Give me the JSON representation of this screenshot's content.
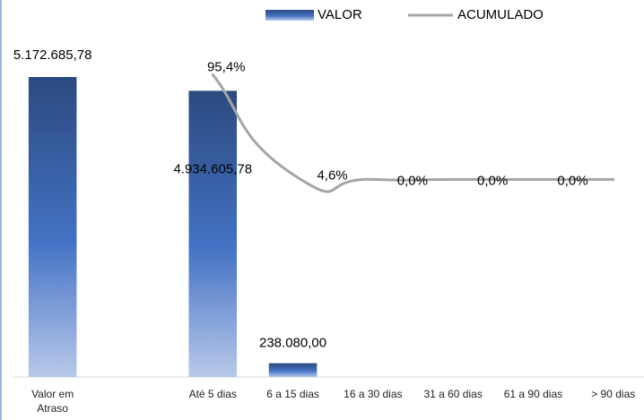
{
  "chart_data": {
    "type": "bar_line",
    "categories": [
      "Valor em Atraso",
      null,
      "Até 5 dias",
      "6 a 15 dias",
      "16 a 30 dias",
      "31 a 60 dias",
      "61 a 90 dias",
      "> 90 dias"
    ],
    "series": [
      {
        "name": "VALOR",
        "type": "bar",
        "color": "#4472c4",
        "values": [
          5172685.78,
          null,
          4934605.78,
          238080.0,
          0,
          0,
          0,
          0
        ],
        "value_labels": [
          "5.172.685,78",
          null,
          "4.934.605,78",
          "238.080,00",
          null,
          null,
          null,
          null
        ]
      },
      {
        "name": "ACUMULADO",
        "type": "line",
        "axis": "y2",
        "color": "#a5a5a5",
        "values": [
          null,
          null,
          95.4,
          4.6,
          0,
          0,
          0,
          0
        ],
        "value_labels": [
          null,
          null,
          "95,4%",
          "4,6%",
          "0,0%",
          "0,0%",
          "0,0%",
          null
        ]
      }
    ],
    "ylim": [
      0,
      6000000
    ],
    "y2lim": [
      -180,
      137
    ],
    "legend": "top"
  }
}
